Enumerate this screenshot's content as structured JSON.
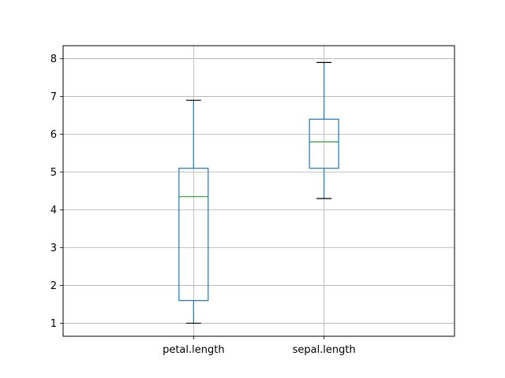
{
  "chart_data": {
    "type": "box",
    "categories": [
      "petal.length",
      "sepal.length"
    ],
    "boxes": [
      {
        "label": "petal.length",
        "whisker_low": 1.0,
        "q1": 1.6,
        "median": 4.35,
        "q3": 5.1,
        "whisker_high": 6.9
      },
      {
        "label": "sepal.length",
        "whisker_low": 4.3,
        "q1": 5.1,
        "median": 5.8,
        "q3": 6.4,
        "whisker_high": 7.9
      }
    ],
    "ylim": [
      0.655,
      8.345
    ],
    "yticks": [
      "1",
      "2",
      "3",
      "4",
      "5",
      "6",
      "7",
      "8"
    ],
    "grid": true,
    "colors": {
      "box": "#1f77b4",
      "median": "#2ca02c",
      "whisker": "#1f77b4",
      "cap": "#000000",
      "grid": "#b0b0b0"
    }
  }
}
